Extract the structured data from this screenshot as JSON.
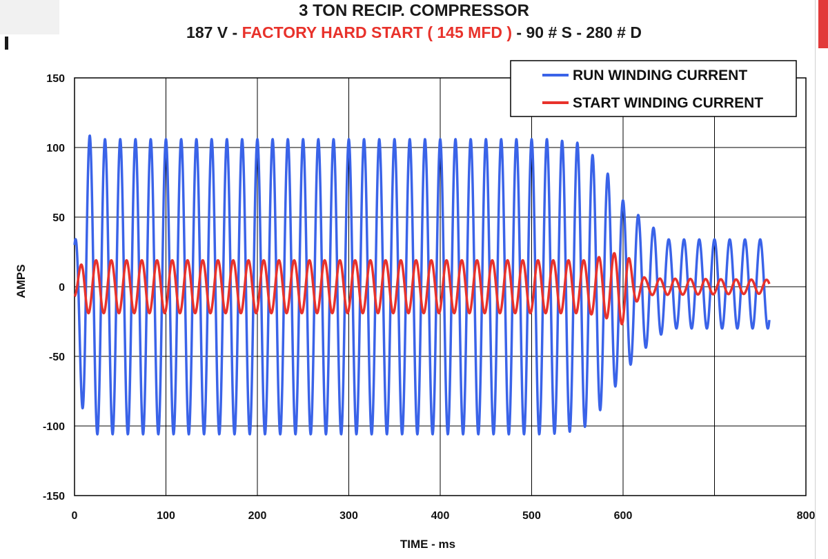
{
  "title": {
    "line1": "3 TON RECIP. COMPRESSOR",
    "line2_a": "187 V  - ",
    "line2_b": "FACTORY HARD START ( 145 MFD )",
    "line2_c": " - 90 # S - 280 # D"
  },
  "colors": {
    "run": "#3a63e8",
    "start": "#e8322b",
    "title_highlight": "#e8322b",
    "grid": "#000000"
  },
  "chart_data": {
    "type": "line",
    "title": "3 TON RECIP. COMPRESSOR",
    "subtitle": "187 V - FACTORY HARD START ( 145 MFD ) - 90 # S - 280 # D",
    "xlabel": "TIME - ms",
    "ylabel": "AMPS",
    "xlim": [
      0,
      800
    ],
    "ylim": [
      -150,
      150
    ],
    "x_ticks": [
      0,
      100,
      200,
      300,
      400,
      500,
      600,
      800
    ],
    "x_gridlines": [
      0,
      100,
      200,
      300,
      400,
      500,
      600,
      700,
      800
    ],
    "y_ticks": [
      150,
      100,
      50,
      0,
      -50,
      -100,
      -150
    ],
    "grid": true,
    "legend_position": "top-right",
    "series": [
      {
        "name": "RUN WINDING CURRENT",
        "kind": "sinusoid",
        "frequency_hz": 60,
        "envelope": [
          {
            "t": 0,
            "amp": 30
          },
          {
            "t": 12,
            "amp": 110
          },
          {
            "t": 25,
            "amp": 106
          },
          {
            "t": 520,
            "amp": 106
          },
          {
            "t": 555,
            "amp": 103
          },
          {
            "t": 580,
            "amp": 85
          },
          {
            "t": 600,
            "amp": 62
          },
          {
            "t": 625,
            "amp": 45
          },
          {
            "t": 650,
            "amp": 32
          },
          {
            "t": 760,
            "amp": 32
          }
        ],
        "offset": [
          {
            "t": 0,
            "v": 0
          },
          {
            "t": 600,
            "v": 0
          },
          {
            "t": 640,
            "v": 2
          },
          {
            "t": 760,
            "v": 2
          }
        ]
      },
      {
        "name": "START WINDING CURRENT",
        "kind": "sinusoid",
        "frequency_hz": 60,
        "envelope": [
          {
            "t": 0,
            "amp": 8
          },
          {
            "t": 10,
            "amp": 19
          },
          {
            "t": 560,
            "amp": 19
          },
          {
            "t": 590,
            "amp": 24
          },
          {
            "t": 602,
            "amp": 28
          },
          {
            "t": 612,
            "amp": 12
          },
          {
            "t": 625,
            "amp": 6
          },
          {
            "t": 760,
            "amp": 5
          }
        ],
        "offset": [
          {
            "t": 0,
            "v": 0
          },
          {
            "t": 620,
            "v": 0
          },
          {
            "t": 640,
            "v": 0
          },
          {
            "t": 760,
            "v": 0
          }
        ]
      }
    ],
    "x_end": 760
  }
}
